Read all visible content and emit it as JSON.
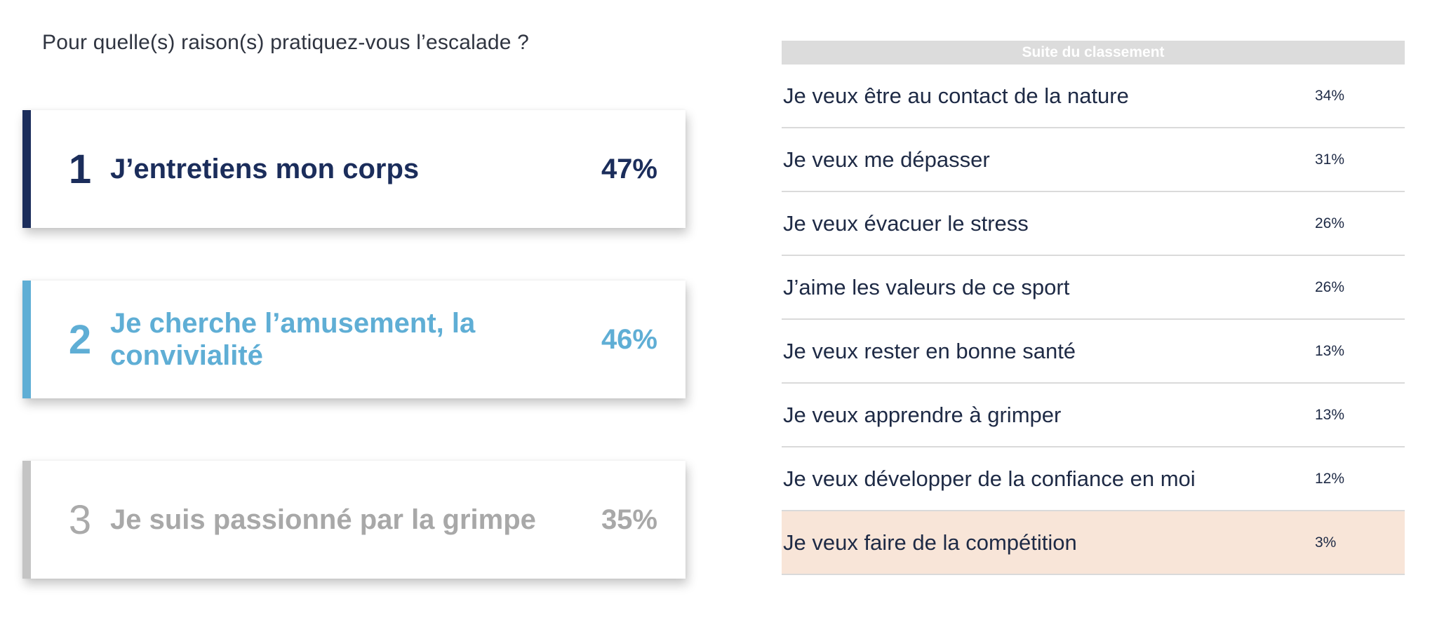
{
  "question": "Pour quelle(s) raison(s) pratiquez-vous l’escalade ?",
  "colors": {
    "rank1": "#1b2d5b",
    "rank2": "#5faed5",
    "rank3": "#a8a8a8",
    "highlight_row": "#f8e5d8",
    "header_bg": "#dcdcdc"
  },
  "podium": [
    {
      "rank": "1",
      "label": "J’entretiens mon corps",
      "value": "47%"
    },
    {
      "rank": "2",
      "label": "Je cherche l’amusement, la convivialité",
      "value": "46%"
    },
    {
      "rank": "3",
      "label": "Je suis passionné par la grimpe",
      "value": "35%"
    }
  ],
  "ranking": {
    "header": "Suite du classement",
    "rows": [
      {
        "label": "Je veux être au contact de la nature",
        "value": "34%"
      },
      {
        "label": "Je veux me dépasser",
        "value": "31%"
      },
      {
        "label": "Je veux évacuer le stress",
        "value": "26%"
      },
      {
        "label": "J’aime les valeurs de ce sport",
        "value": "26%"
      },
      {
        "label": "Je veux rester en bonne santé",
        "value": "13%"
      },
      {
        "label": "Je veux apprendre à grimper",
        "value": "13%"
      },
      {
        "label": "Je veux développer de la confiance en moi",
        "value": "12%"
      },
      {
        "label": "Je veux faire de la compétition",
        "value": "3%"
      }
    ],
    "highlighted_row": "Je veux faire de la compétition"
  },
  "chart_data": {
    "type": "table",
    "title": "Pour quelle(s) raison(s) pratiquez-vous l’escalade ?",
    "categories": [
      "J’entretiens mon corps",
      "Je cherche l’amusement, la convivialité",
      "Je suis passionné par la grimpe",
      "Je veux être au contact de la nature",
      "Je veux me dépasser",
      "Je veux évacuer le stress",
      "J’aime les valeurs de ce sport",
      "Je veux rester en bonne santé",
      "Je veux apprendre à grimper",
      "Je veux développer de la confiance en moi",
      "Je veux faire de la compétition"
    ],
    "values": [
      47,
      46,
      35,
      34,
      31,
      26,
      26,
      13,
      13,
      12,
      3
    ],
    "unit": "%"
  }
}
